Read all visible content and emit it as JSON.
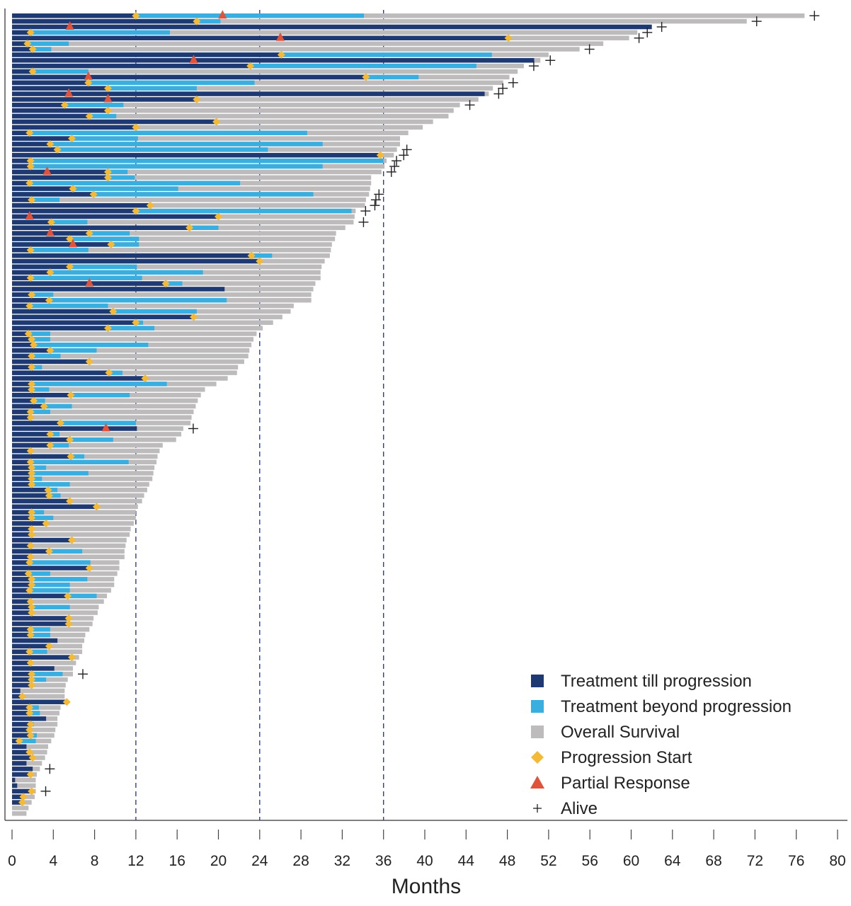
{
  "chart_data": {
    "type": "swimmer",
    "title": "",
    "xlabel": "Months",
    "ylabel": "",
    "xlim": [
      0,
      80
    ],
    "x_ticks": [
      0,
      4,
      8,
      12,
      16,
      20,
      24,
      28,
      32,
      36,
      40,
      44,
      48,
      52,
      56,
      60,
      64,
      68,
      72,
      76,
      80
    ],
    "reference_lines": [
      12,
      24,
      36
    ],
    "legend": {
      "placement": "bottom-right",
      "entries": [
        {
          "key": "ttp",
          "label": "Treatment till progression",
          "marker": "square",
          "color": "#1f3a73"
        },
        {
          "key": "tbp",
          "label": "Treatment beyond progression",
          "marker": "square",
          "color": "#3aaede"
        },
        {
          "key": "os",
          "label": "Overall Survival",
          "marker": "square",
          "color": "#bdbbbb"
        },
        {
          "key": "ps",
          "label": "Progression Start",
          "marker": "diamond",
          "color": "#f4b935"
        },
        {
          "key": "pr",
          "label": "Partial Response",
          "marker": "triangle",
          "color": "#e0533a"
        },
        {
          "key": "alive",
          "label": "Alive",
          "marker": "plus",
          "color": "#222222"
        }
      ]
    },
    "row_fields": [
      "treatment_till_progression_end",
      "treatment_beyond_progression_end",
      "overall_survival",
      "progression_start",
      "partial_response",
      "alive"
    ],
    "rows": [
      [
        12.0,
        34.1,
        76.8,
        12.0,
        20.4,
        true
      ],
      [
        17.9,
        20.2,
        71.2,
        17.9,
        null,
        true
      ],
      [
        62.0,
        null,
        62.0,
        null,
        5.6,
        true
      ],
      [
        1.8,
        15.3,
        60.6,
        1.8,
        null,
        true
      ],
      [
        48.1,
        null,
        59.8,
        48.1,
        26.0,
        true
      ],
      [
        1.5,
        5.5,
        57.3,
        1.5,
        null,
        null
      ],
      [
        2.0,
        3.8,
        55.0,
        2.0,
        null,
        true
      ],
      [
        26.1,
        46.5,
        52.0,
        26.1,
        null,
        null
      ],
      [
        50.6,
        null,
        51.2,
        null,
        17.6,
        true
      ],
      [
        23.1,
        45.0,
        49.6,
        23.1,
        null,
        true
      ],
      [
        2.0,
        7.4,
        49.0,
        2.0,
        null,
        null
      ],
      [
        34.3,
        39.4,
        48.2,
        34.3,
        7.4,
        null
      ],
      [
        7.4,
        23.5,
        47.6,
        7.4,
        null,
        true
      ],
      [
        9.3,
        17.9,
        46.6,
        9.3,
        null,
        true
      ],
      [
        45.8,
        null,
        46.2,
        null,
        5.5,
        true
      ],
      [
        17.9,
        null,
        45.2,
        17.9,
        9.3,
        null
      ],
      [
        5.1,
        10.8,
        43.4,
        5.1,
        null,
        true
      ],
      [
        9.3,
        null,
        42.8,
        9.3,
        null,
        null
      ],
      [
        7.5,
        10.1,
        42.3,
        7.5,
        null,
        null
      ],
      [
        19.8,
        null,
        40.8,
        19.8,
        null,
        null
      ],
      [
        12.0,
        null,
        39.8,
        12.0,
        null,
        null
      ],
      [
        1.7,
        28.6,
        38.4,
        1.7,
        null,
        null
      ],
      [
        5.8,
        12.2,
        37.6,
        5.8,
        null,
        null
      ],
      [
        3.7,
        30.1,
        37.6,
        3.7,
        null,
        null
      ],
      [
        4.4,
        24.8,
        37.3,
        4.4,
        null,
        true
      ],
      [
        35.7,
        null,
        37.0,
        35.7,
        null,
        true
      ],
      [
        1.8,
        36.0,
        36.3,
        1.8,
        null,
        true
      ],
      [
        1.8,
        30.1,
        36.1,
        1.8,
        null,
        true
      ],
      [
        9.3,
        11.2,
        35.8,
        9.3,
        3.4,
        true
      ],
      [
        9.3,
        11.9,
        34.8,
        9.3,
        null,
        null
      ],
      [
        1.7,
        22.1,
        34.8,
        1.7,
        null,
        null
      ],
      [
        5.9,
        16.1,
        34.7,
        5.9,
        null,
        null
      ],
      [
        7.9,
        29.2,
        34.6,
        7.9,
        null,
        true
      ],
      [
        1.9,
        4.6,
        34.3,
        1.9,
        null,
        true
      ],
      [
        13.4,
        null,
        34.2,
        13.4,
        null,
        true
      ],
      [
        12.0,
        32.9,
        33.3,
        12.0,
        null,
        true
      ],
      [
        20.0,
        null,
        33.2,
        20.0,
        1.7,
        null
      ],
      [
        3.8,
        7.3,
        33.1,
        3.8,
        null,
        true
      ],
      [
        17.2,
        20.0,
        32.3,
        17.2,
        null,
        null
      ],
      [
        7.5,
        11.4,
        31.4,
        7.5,
        3.7,
        null
      ],
      [
        5.6,
        12.3,
        31.3,
        5.6,
        null,
        null
      ],
      [
        9.6,
        12.3,
        31.0,
        9.6,
        5.9,
        null
      ],
      [
        1.8,
        7.4,
        30.9,
        1.8,
        null,
        null
      ],
      [
        23.2,
        25.2,
        30.8,
        23.2,
        null,
        null
      ],
      [
        24.0,
        null,
        30.3,
        24.0,
        null,
        null
      ],
      [
        5.6,
        12.1,
        30.0,
        5.6,
        null,
        null
      ],
      [
        3.7,
        18.5,
        29.9,
        3.7,
        null,
        null
      ],
      [
        1.8,
        12.6,
        29.9,
        1.8,
        null,
        null
      ],
      [
        14.9,
        16.5,
        29.4,
        14.9,
        7.5,
        null
      ],
      [
        20.6,
        null,
        29.2,
        null,
        null,
        null
      ],
      [
        1.9,
        4.0,
        29.0,
        1.9,
        null,
        null
      ],
      [
        3.6,
        20.8,
        29.0,
        3.6,
        null,
        null
      ],
      [
        1.7,
        9.3,
        27.3,
        1.7,
        null,
        null
      ],
      [
        9.8,
        17.9,
        27.0,
        9.8,
        null,
        null
      ],
      [
        17.6,
        null,
        26.2,
        17.6,
        null,
        null
      ],
      [
        12.0,
        12.7,
        25.3,
        12.0,
        null,
        null
      ],
      [
        9.3,
        13.8,
        24.3,
        9.3,
        null,
        null
      ],
      [
        1.6,
        3.7,
        23.7,
        1.6,
        null,
        null
      ],
      [
        1.9,
        3.7,
        23.4,
        1.9,
        null,
        null
      ],
      [
        2.1,
        13.2,
        23.2,
        2.1,
        null,
        null
      ],
      [
        3.7,
        8.2,
        23.0,
        3.7,
        null,
        null
      ],
      [
        1.9,
        4.7,
        22.9,
        1.9,
        null,
        null
      ],
      [
        7.5,
        null,
        22.5,
        7.5,
        null,
        null
      ],
      [
        1.9,
        2.9,
        21.9,
        1.9,
        null,
        null
      ],
      [
        9.4,
        10.7,
        21.8,
        9.4,
        null,
        null
      ],
      [
        12.9,
        null,
        20.9,
        12.9,
        null,
        null
      ],
      [
        1.9,
        15.0,
        19.8,
        1.9,
        null,
        null
      ],
      [
        1.9,
        3.6,
        18.7,
        1.9,
        null,
        null
      ],
      [
        5.7,
        11.4,
        18.3,
        5.7,
        null,
        null
      ],
      [
        2.1,
        3.2,
        18.0,
        2.1,
        null,
        null
      ],
      [
        3.1,
        5.8,
        17.8,
        3.1,
        null,
        null
      ],
      [
        1.8,
        3.7,
        17.6,
        1.8,
        null,
        null
      ],
      [
        1.8,
        null,
        17.4,
        1.8,
        null,
        null
      ],
      [
        4.7,
        12.0,
        17.3,
        4.7,
        null,
        null
      ],
      [
        12.1,
        null,
        16.6,
        null,
        9.1,
        true
      ],
      [
        3.7,
        4.6,
        16.4,
        3.7,
        null,
        null
      ],
      [
        5.6,
        9.8,
        15.9,
        5.6,
        null,
        null
      ],
      [
        3.7,
        5.5,
        14.6,
        3.7,
        null,
        null
      ],
      [
        1.8,
        null,
        14.3,
        1.8,
        null,
        null
      ],
      [
        5.7,
        7.0,
        14.1,
        5.7,
        null,
        null
      ],
      [
        1.8,
        11.3,
        14.0,
        1.8,
        null,
        null
      ],
      [
        1.9,
        3.3,
        13.8,
        1.9,
        null,
        null
      ],
      [
        1.9,
        7.4,
        13.7,
        1.9,
        null,
        null
      ],
      [
        1.9,
        2.9,
        13.6,
        1.9,
        null,
        null
      ],
      [
        1.9,
        5.6,
        13.3,
        1.9,
        null,
        null
      ],
      [
        3.5,
        4.4,
        13.1,
        3.5,
        null,
        null
      ],
      [
        3.6,
        4.7,
        12.8,
        3.6,
        null,
        null
      ],
      [
        5.6,
        null,
        12.6,
        5.6,
        null,
        null
      ],
      [
        8.2,
        null,
        12.2,
        8.2,
        null,
        null
      ],
      [
        1.9,
        3.1,
        12.0,
        1.9,
        null,
        null
      ],
      [
        1.9,
        4.0,
        12.0,
        1.9,
        null,
        null
      ],
      [
        3.3,
        null,
        11.8,
        3.3,
        null,
        null
      ],
      [
        1.9,
        null,
        11.5,
        1.9,
        null,
        null
      ],
      [
        1.9,
        null,
        11.4,
        1.9,
        null,
        null
      ],
      [
        5.8,
        null,
        11.1,
        5.8,
        null,
        null
      ],
      [
        1.8,
        2.0,
        11.0,
        1.8,
        null,
        null
      ],
      [
        3.6,
        6.8,
        10.9,
        3.6,
        null,
        null
      ],
      [
        1.8,
        null,
        10.9,
        1.8,
        null,
        null
      ],
      [
        1.7,
        7.6,
        10.4,
        1.7,
        null,
        null
      ],
      [
        7.5,
        null,
        10.4,
        7.5,
        null,
        null
      ],
      [
        1.6,
        3.7,
        10.2,
        1.6,
        null,
        null
      ],
      [
        1.9,
        7.3,
        9.9,
        1.9,
        null,
        null
      ],
      [
        1.9,
        5.6,
        9.9,
        1.9,
        null,
        null
      ],
      [
        1.7,
        5.6,
        9.6,
        1.7,
        null,
        null
      ],
      [
        5.4,
        8.2,
        9.2,
        5.4,
        null,
        null
      ],
      [
        1.8,
        null,
        8.9,
        1.8,
        null,
        null
      ],
      [
        1.9,
        5.6,
        8.4,
        1.9,
        null,
        null
      ],
      [
        1.9,
        null,
        8.3,
        1.9,
        null,
        null
      ],
      [
        5.5,
        null,
        7.9,
        5.5,
        null,
        null
      ],
      [
        5.5,
        null,
        7.8,
        5.5,
        null,
        null
      ],
      [
        1.8,
        3.7,
        7.5,
        1.8,
        null,
        null
      ],
      [
        1.8,
        3.7,
        7.1,
        1.8,
        null,
        null
      ],
      [
        4.4,
        null,
        7.0,
        null,
        null,
        null
      ],
      [
        3.6,
        null,
        6.8,
        3.6,
        null,
        null
      ],
      [
        1.7,
        3.4,
        6.8,
        1.7,
        null,
        null
      ],
      [
        5.8,
        null,
        6.5,
        5.8,
        null,
        null
      ],
      [
        1.8,
        null,
        6.2,
        1.8,
        null,
        null
      ],
      [
        4.1,
        null,
        5.9,
        null,
        null,
        null
      ],
      [
        1.9,
        4.9,
        5.9,
        1.9,
        null,
        true
      ],
      [
        1.9,
        3.3,
        5.4,
        1.9,
        null,
        null
      ],
      [
        1.9,
        null,
        5.2,
        1.9,
        null,
        null
      ],
      [
        0.8,
        null,
        5.1,
        null,
        null,
        null
      ],
      [
        1.0,
        null,
        5.1,
        1.0,
        null,
        null
      ],
      [
        5.3,
        null,
        4.9,
        5.3,
        null,
        null
      ],
      [
        1.7,
        2.6,
        4.7,
        1.7,
        null,
        null
      ],
      [
        1.7,
        2.7,
        4.6,
        1.7,
        null,
        null
      ],
      [
        3.3,
        null,
        4.4,
        null,
        null,
        null
      ],
      [
        1.8,
        2.1,
        4.4,
        1.8,
        null,
        null
      ],
      [
        1.7,
        null,
        4.2,
        1.7,
        null,
        null
      ],
      [
        1.8,
        2.4,
        4.1,
        1.8,
        null,
        null
      ],
      [
        0.7,
        2.3,
        3.8,
        0.7,
        null,
        null
      ],
      [
        1.4,
        null,
        3.5,
        null,
        null,
        null
      ],
      [
        1.7,
        null,
        3.4,
        1.7,
        null,
        null
      ],
      [
        2.0,
        null,
        3.2,
        2.0,
        null,
        null
      ],
      [
        1.4,
        null,
        2.9,
        null,
        null,
        null
      ],
      [
        2.0,
        null,
        2.7,
        null,
        null,
        true
      ],
      [
        1.8,
        null,
        2.4,
        1.8,
        null,
        null
      ],
      [
        0.3,
        null,
        2.3,
        null,
        null,
        null
      ],
      [
        0.5,
        null,
        2.3,
        null,
        null,
        null
      ],
      [
        1.9,
        null,
        2.3,
        1.9,
        null,
        true
      ],
      [
        1.1,
        null,
        2.2,
        1.1,
        null,
        null
      ],
      [
        1.0,
        null,
        1.9,
        1.0,
        null,
        null
      ],
      [
        null,
        null,
        1.6,
        null,
        null,
        null
      ],
      [
        null,
        null,
        1.4,
        null,
        null,
        null
      ]
    ]
  }
}
